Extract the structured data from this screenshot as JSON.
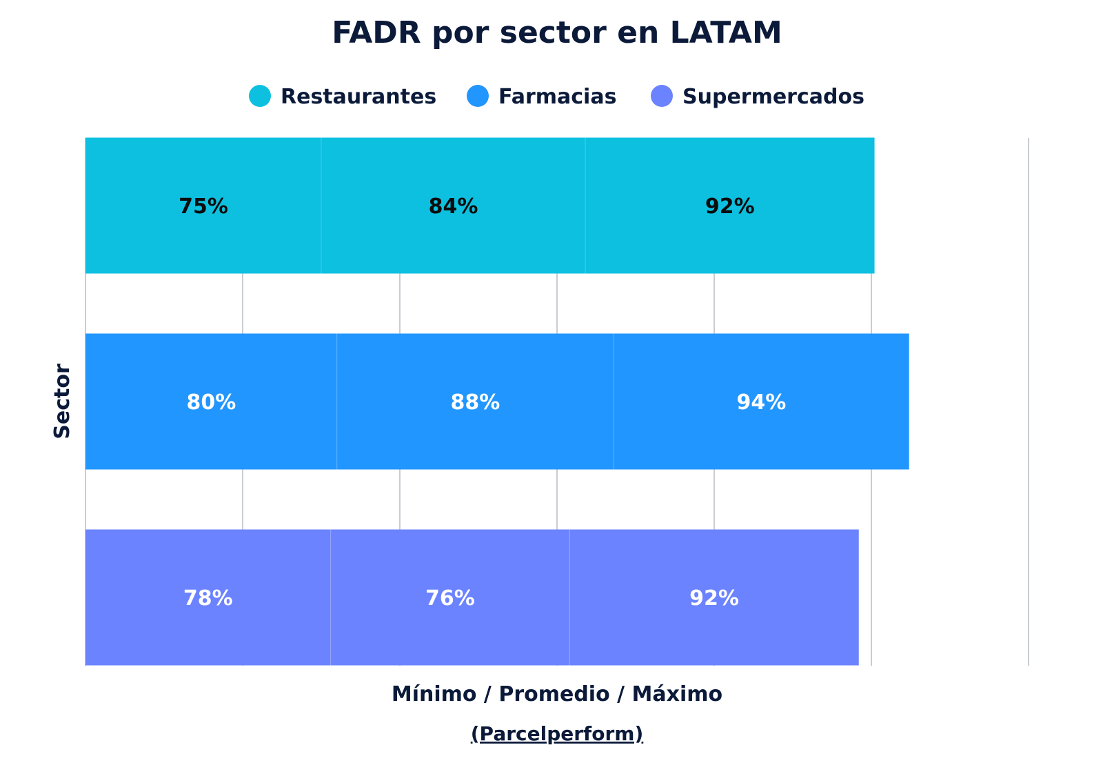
{
  "chart_data": {
    "type": "bar",
    "orientation": "horizontal",
    "stacked": true,
    "title": "FADR por sector en LATAM",
    "xlabel": "Mínimo / Promedio / Máximo",
    "ylabel": "Sector",
    "source": "(Parcelperform)",
    "xlim": [
      0,
      300
    ],
    "x_gridlines": [
      0,
      50,
      100,
      150,
      200,
      250,
      300
    ],
    "grid": true,
    "legend_position": "top",
    "categories": [
      "Restaurantes",
      "Farmacias",
      "Supermercados"
    ],
    "stack_segments": [
      "Mínimo",
      "Promedio",
      "Máximo"
    ],
    "series": [
      {
        "name": "Restaurantes",
        "color": "#0dc0e0",
        "label_color": "#0c0c0c",
        "values": [
          75,
          84,
          92
        ],
        "labels": [
          "75%",
          "84%",
          "92%"
        ]
      },
      {
        "name": "Farmacias",
        "color": "#2296ff",
        "label_color": "#ffffff",
        "values": [
          80,
          88,
          94
        ],
        "labels": [
          "80%",
          "88%",
          "94%"
        ]
      },
      {
        "name": "Supermercados",
        "color": "#6b83ff",
        "label_color": "#ffffff",
        "values": [
          78,
          76,
          92
        ],
        "labels": [
          "78%",
          "76%",
          "92%"
        ]
      }
    ],
    "gridline_color": "#c8ccd2",
    "text_color": "#0c1a3a"
  }
}
